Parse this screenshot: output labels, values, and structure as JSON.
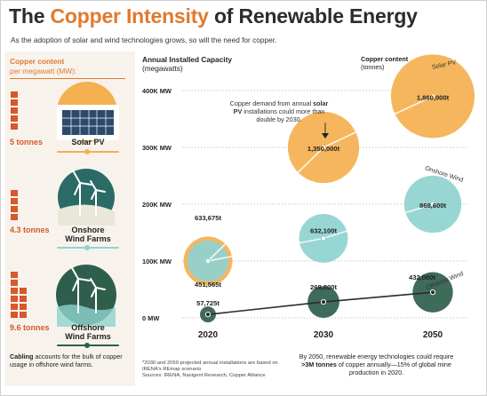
{
  "header": {
    "title_pre": "The ",
    "title_accent": "Copper Intensity",
    "title_post": " of Renewable Energy",
    "subtitle": "As the adoption of solar and wind technologies grows, so will the need for copper."
  },
  "left_panel": {
    "heading_bold": "Copper content",
    "heading_rest": "per megawatt (MW):",
    "items": [
      {
        "amount": "5 tonnes",
        "label_line1": "Solar PV",
        "label_line2": "",
        "color": "#f5b04f",
        "tonnes": 5
      },
      {
        "amount": "4.3 tonnes",
        "label_line1": "Onshore",
        "label_line2": "Wind Farms",
        "color": "#8fd3d0",
        "tonnes": 4.3
      },
      {
        "amount": "9.6 tonnes",
        "label_line1": "Offshore",
        "label_line2": "Wind Farms",
        "color": "#2f5e4c",
        "tonnes": 9.6
      }
    ],
    "note_bold": "Cabling",
    "note_rest": " accounts for the bulk of copper usage in offshore wind farms."
  },
  "chart_head": {
    "title": "Annual Installed Capacity",
    "unit": "(megawatts)"
  },
  "legend_head": {
    "title": "Copper content",
    "unit": "(tonnes)"
  },
  "annotation": {
    "pre": "Copper demand from annual ",
    "bold": "solar PV",
    "post": " installations could more than double by 2030."
  },
  "footnote": {
    "line1": "*2030 and 2050 projected annual installations are based on IRENA's REmap scenario",
    "line2": "Sources: IRENA, Navigent Research, Copper Alliance"
  },
  "foot_right": {
    "pre": "By 2050, renewable energy technologies could require ",
    "bold": ">3M tonnes",
    "post": " of copper annually—15% of global mine production in 2020."
  },
  "colors": {
    "accent": "#e07a2f",
    "brick": "#d7582a",
    "solar": "#f5b04f",
    "onshore": "#8fd3d0",
    "offshore": "#2f5e4c"
  },
  "chart_data": {
    "type": "scatter",
    "x": [
      "2020",
      "2030",
      "2050"
    ],
    "ylabel": "Annual Installed Capacity (megawatts)",
    "ylim": [
      0,
      400000
    ],
    "yticks": [
      0,
      100000,
      200000,
      300000,
      400000
    ],
    "ytick_labels": [
      "0 MW",
      "100K MW",
      "200K MW",
      "300K MW",
      "400K MW"
    ],
    "grid": true,
    "series": [
      {
        "name": "Solar PV",
        "color": "#f5b04f",
        "line_color": "#f7b95e",
        "capacity_mw": [
          100000,
          300000,
          390000
        ],
        "copper_tonnes": [
          633675,
          1350000,
          1860000
        ],
        "labels": [
          "633,675t",
          "1,350,000t",
          "1,860,000t"
        ]
      },
      {
        "name": "Onshore Wind",
        "color": "#8fd3d0",
        "line_color": "#8fd3d0",
        "capacity_mw": [
          100000,
          140000,
          200000
        ],
        "copper_tonnes": [
          451565,
          632100,
          868600
        ],
        "labels": [
          "451,565t",
          "632,100t",
          "868,600t"
        ]
      },
      {
        "name": "Offshore Wind",
        "color": "#2f5e4c",
        "line_color": "#2f5e4c",
        "capacity_mw": [
          6000,
          28000,
          45000
        ],
        "copper_tonnes": [
          57725,
          268800,
          432000
        ],
        "labels": [
          "57,725t",
          "268,800t",
          "432,000t"
        ]
      }
    ]
  }
}
